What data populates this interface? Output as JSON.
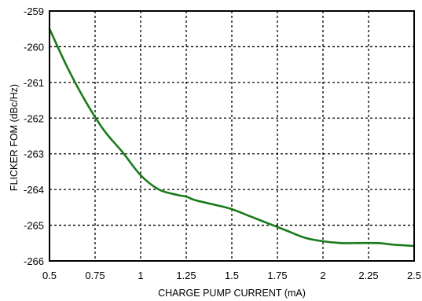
{
  "chart_data": {
    "type": "line",
    "title": "",
    "xlabel": "CHARGE PUMP CURRENT (mA)",
    "ylabel": "FLICKER FOM (dBc/Hz)",
    "xlim": [
      0.5,
      2.5
    ],
    "ylim": [
      -266,
      -259
    ],
    "x_ticks": [
      "0.5",
      "0.75",
      "1",
      "1.25",
      "1.5",
      "1.75",
      "2",
      "2.25",
      "2.5"
    ],
    "y_ticks": [
      "-259",
      "-260",
      "-261",
      "-262",
      "-263",
      "-264",
      "-265",
      "-266"
    ],
    "grid": true,
    "line_color": "#1a7a1a",
    "series": [
      {
        "x": [
          0.5,
          0.6,
          0.7,
          0.8,
          0.9,
          1.0,
          1.1,
          1.2,
          1.25,
          1.3,
          1.4,
          1.5,
          1.6,
          1.7,
          1.8,
          1.9,
          2.0,
          2.1,
          2.2,
          2.3,
          2.4,
          2.5
        ],
        "y": [
          -259.5,
          -260.6,
          -261.55,
          -262.35,
          -262.95,
          -263.6,
          -264.0,
          -264.15,
          -264.2,
          -264.3,
          -264.42,
          -264.55,
          -264.75,
          -264.95,
          -265.15,
          -265.35,
          -265.45,
          -265.5,
          -265.5,
          -265.5,
          -265.55,
          -265.58
        ]
      }
    ]
  }
}
